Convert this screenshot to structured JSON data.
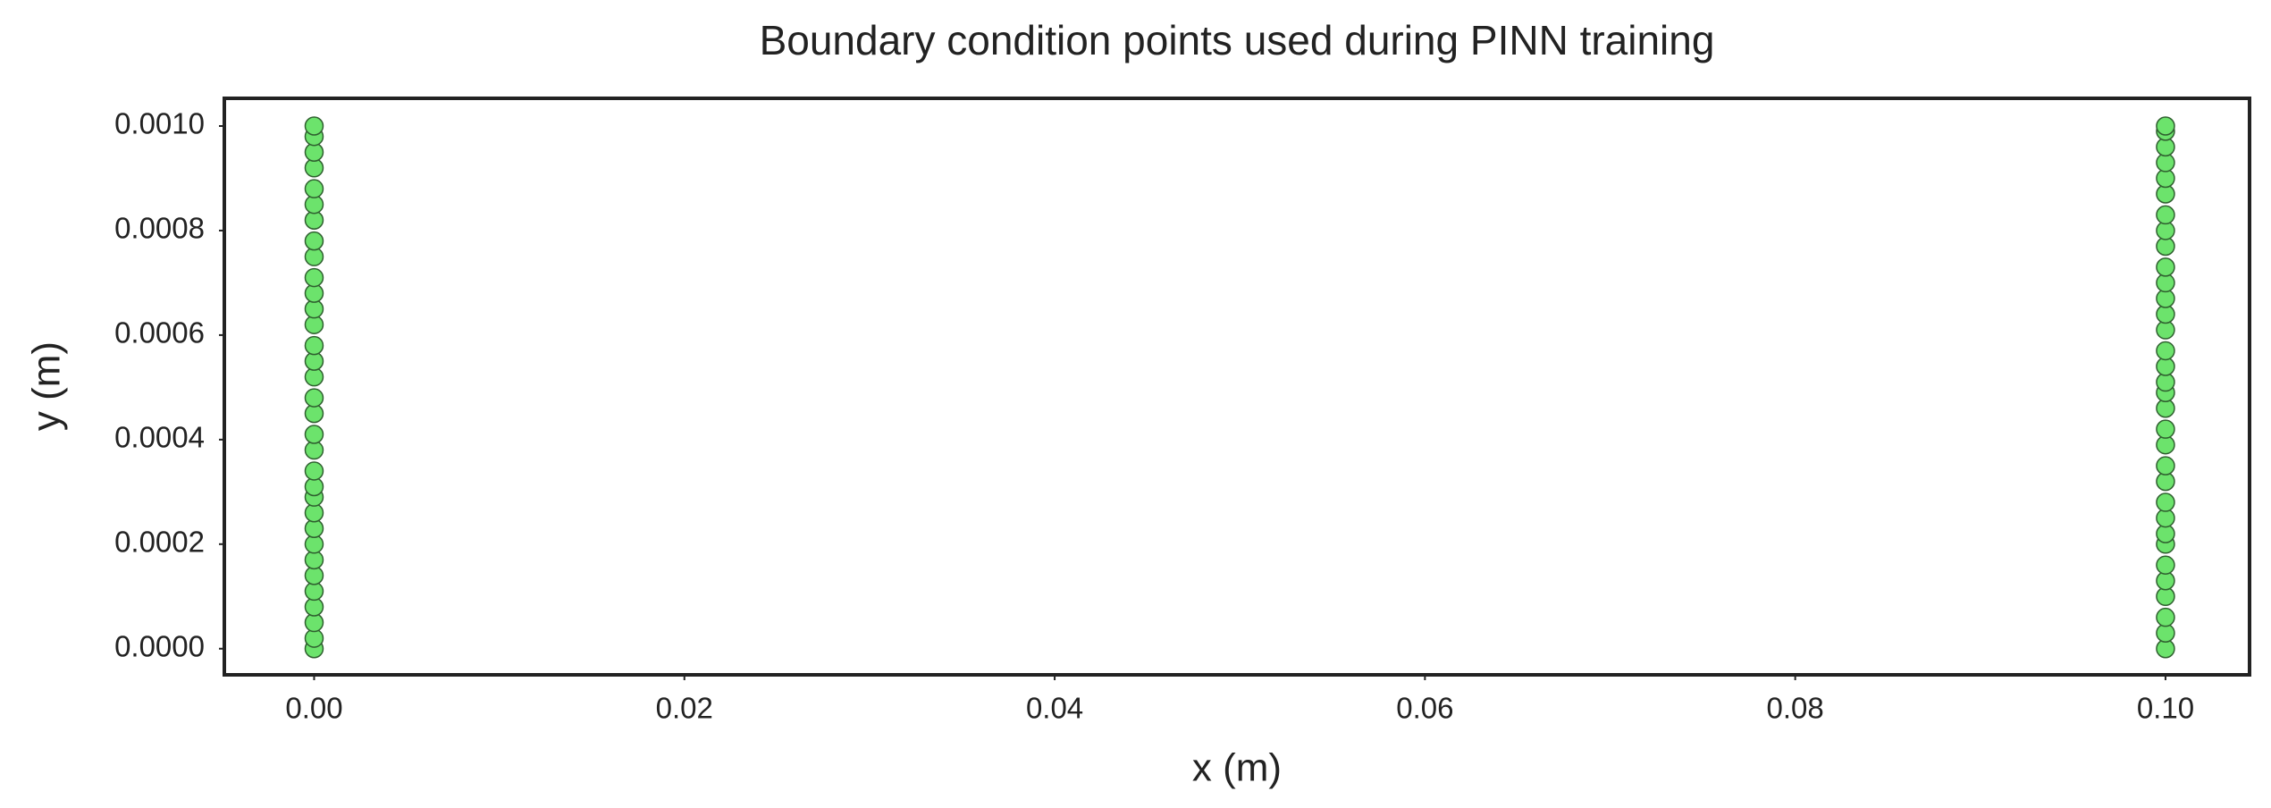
{
  "chart_data": {
    "type": "scatter",
    "title": "Boundary condition points used during PINN training",
    "x_label": "x (m)",
    "y_label": "y (m)",
    "series": [
      {
        "color": "#6ce36c",
        "edgecolor": "#2f5f2f",
        "x": [
          0,
          0,
          0,
          0,
          0,
          0,
          0,
          0,
          0,
          0,
          0,
          0,
          0,
          0,
          0,
          0,
          0,
          0,
          0,
          0,
          0,
          0,
          0,
          0,
          0,
          0,
          0,
          0,
          0,
          0,
          0,
          0,
          0
        ],
        "values": [
          0.0,
          2e-05,
          5e-05,
          8e-05,
          0.00011,
          0.00014,
          0.00017,
          0.0002,
          0.00023,
          0.00026,
          0.00029,
          0.00031,
          0.00034,
          0.00038,
          0.00041,
          0.00045,
          0.00048,
          0.00052,
          0.00055,
          0.00058,
          0.00062,
          0.00065,
          0.00068,
          0.00071,
          0.00075,
          0.00078,
          0.00082,
          0.00085,
          0.00088,
          0.00092,
          0.00095,
          0.00098,
          0.001
        ]
      },
      {
        "color": "#6ce36c",
        "edgecolor": "#2f5f2f",
        "x": [
          0.1,
          0.1,
          0.1,
          0.1,
          0.1,
          0.1,
          0.1,
          0.1,
          0.1,
          0.1,
          0.1,
          0.1,
          0.1,
          0.1,
          0.1,
          0.1,
          0.1,
          0.1,
          0.1,
          0.1,
          0.1,
          0.1,
          0.1,
          0.1,
          0.1,
          0.1,
          0.1,
          0.1,
          0.1,
          0.1,
          0.1,
          0.1,
          0.1
        ],
        "values": [
          0.0,
          3e-05,
          6e-05,
          0.0001,
          0.00013,
          0.00016,
          0.0002,
          0.00022,
          0.00025,
          0.00028,
          0.00032,
          0.00035,
          0.00039,
          0.00042,
          0.00046,
          0.00049,
          0.00051,
          0.00054,
          0.00057,
          0.00061,
          0.00064,
          0.00067,
          0.0007,
          0.00073,
          0.00077,
          0.0008,
          0.00083,
          0.00087,
          0.0009,
          0.00093,
          0.00096,
          0.00099,
          0.001
        ]
      }
    ],
    "xlim": [
      -0.00485,
      0.10454
    ],
    "ylim": [
      -5e-05,
      0.001053
    ],
    "xticks": [
      {
        "value": 0,
        "label": "0.00"
      },
      {
        "value": 0.02,
        "label": "0.02"
      },
      {
        "value": 0.04,
        "label": "0.04"
      },
      {
        "value": 0.06,
        "label": "0.06"
      },
      {
        "value": 0.08,
        "label": "0.08"
      },
      {
        "value": 0.1,
        "label": "0.10"
      }
    ],
    "yticks": [
      {
        "value": 0,
        "label": "0.0000"
      },
      {
        "value": 0.0002,
        "label": "0.0002"
      },
      {
        "value": 0.0004,
        "label": "0.0004"
      },
      {
        "value": 0.0006,
        "label": "0.0006"
      },
      {
        "value": 0.0008,
        "label": "0.0008"
      },
      {
        "value": 0.001,
        "label": "0.0010"
      }
    ],
    "grid": false
  }
}
